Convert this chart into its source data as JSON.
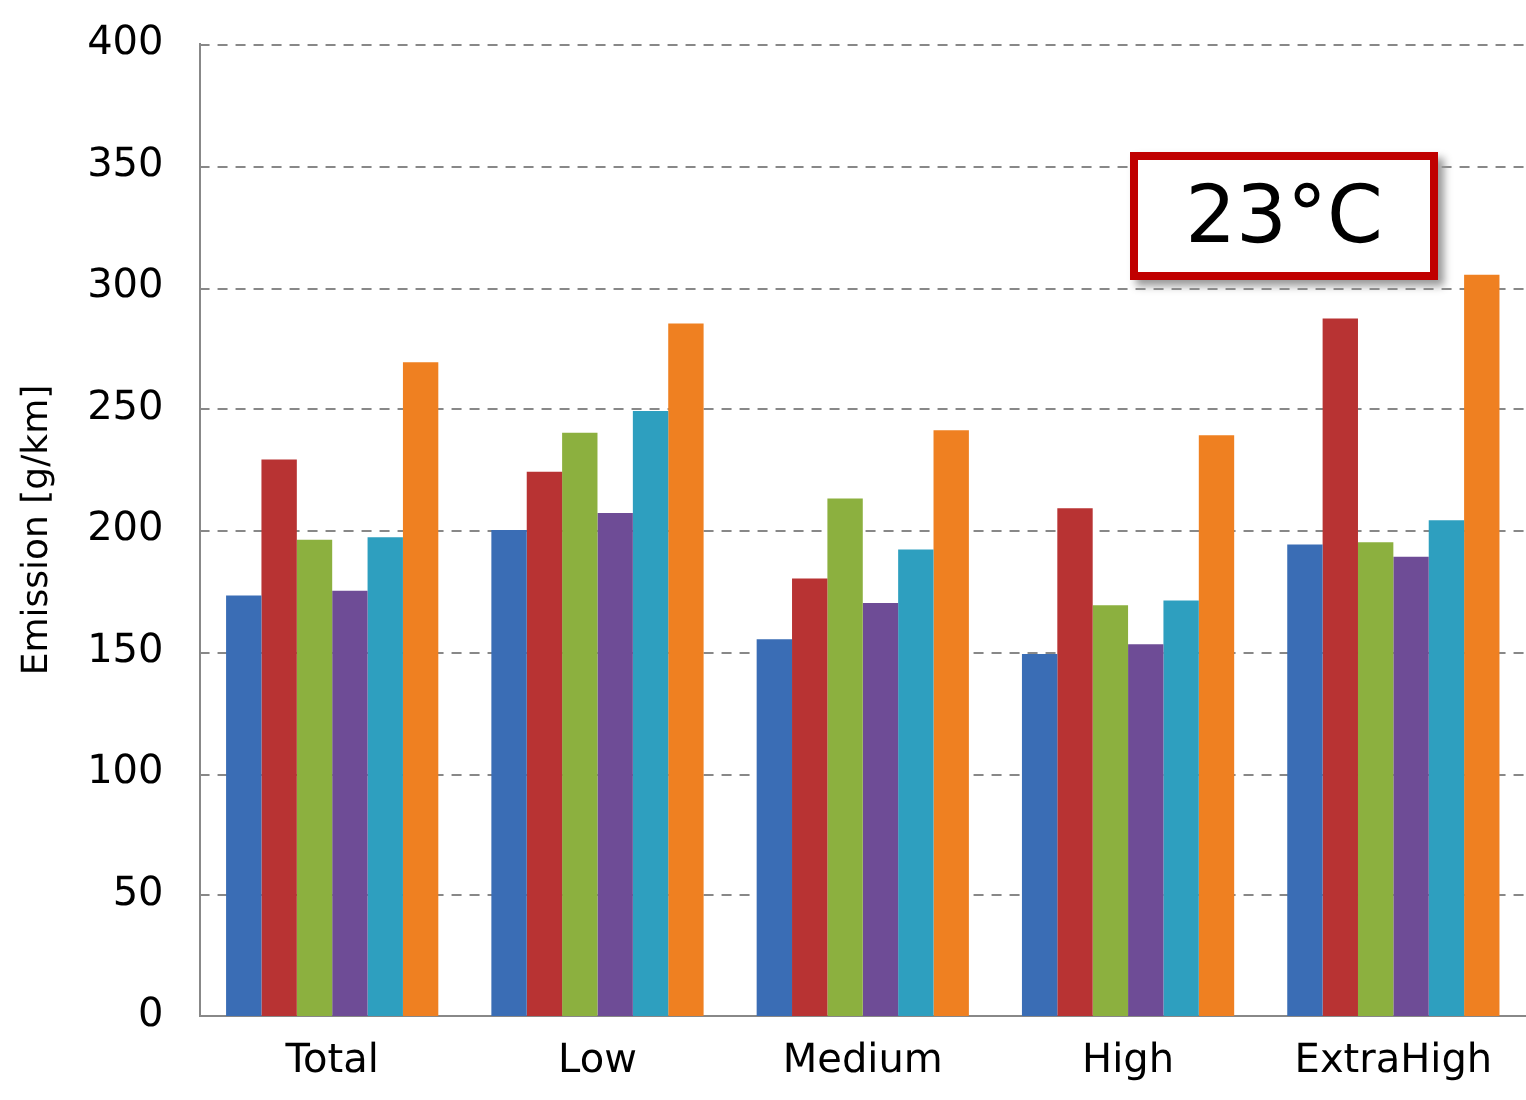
{
  "chart_data": {
    "type": "bar",
    "ylabel": "Emission [g/km]",
    "categories": [
      "Total",
      "Low",
      "Medium",
      "High",
      "ExtraHigh"
    ],
    "series": [
      {
        "color": "#3a6db5",
        "values": [
          173,
          200,
          155,
          149,
          194
        ]
      },
      {
        "color": "#b83333",
        "values": [
          229,
          224,
          180,
          209,
          287
        ]
      },
      {
        "color": "#8cb03f",
        "values": [
          196,
          240,
          213,
          169,
          195
        ]
      },
      {
        "color": "#6e4c96",
        "values": [
          175,
          207,
          170,
          153,
          189
        ]
      },
      {
        "color": "#2e9fbf",
        "values": [
          197,
          249,
          192,
          171,
          204
        ]
      },
      {
        "color": "#ef8021",
        "values": [
          269,
          285,
          241,
          239,
          305
        ]
      }
    ],
    "ylim": [
      0,
      400
    ],
    "yticks": [
      0,
      50,
      100,
      150,
      200,
      250,
      300,
      350,
      400
    ],
    "grid": "y",
    "legend": false,
    "annotations": [
      "23°C"
    ]
  }
}
